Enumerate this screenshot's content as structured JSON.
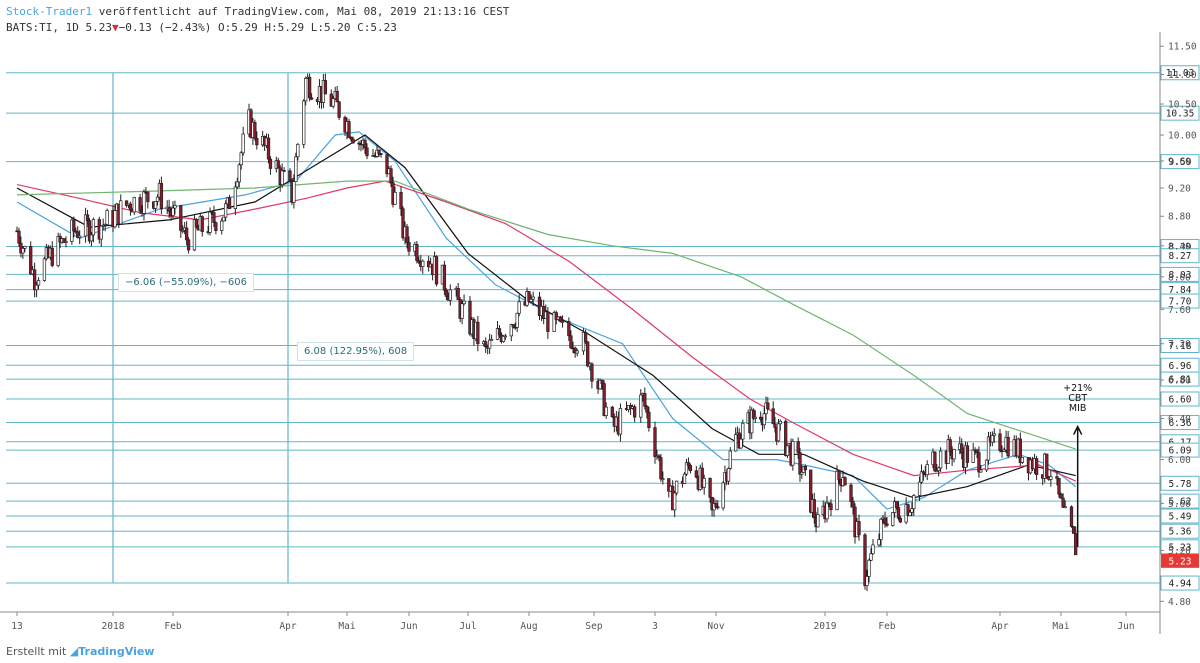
{
  "header": {
    "author": "Stock-Trader1",
    "published": "veröffentlicht auf TradingView.com, Mai 08, 2019 21:13:16 CEST",
    "symbol": "BATS:TI, 1D",
    "last": "5.23",
    "change": "−0.13 (−2.43%)",
    "open": "O:5.29",
    "high": "H:5.29",
    "low": "L:5.20",
    "close": "C:5.23"
  },
  "footer": {
    "prefix": "Erstellt mit",
    "brand": "TradingView"
  },
  "colors": {
    "level_line": "#62b6c8",
    "ma_fast": "#4aa3df",
    "ma_mid": "#111111",
    "ma_slow": "#e0386a",
    "ma_long": "#6fb56f",
    "candle_up": "#ffffff",
    "candle_down": "#8b1a2a",
    "price_label": "#e53935"
  },
  "measurements": [
    {
      "text": "−6.06 (−55.09%), −606"
    },
    {
      "text": "6.08 (122.95%), 608"
    }
  ],
  "annotation": [
    "+21%",
    "CBT",
    "MIB"
  ],
  "chart_data": {
    "type": "candlestick",
    "y_scale": "log",
    "ylim": [
      4.72,
      11.65
    ],
    "y_ticks": [
      "4.80",
      "5.20",
      "5.60",
      "6.00",
      "6.40",
      "6.80",
      "7.20",
      "7.60",
      "8.00",
      "8.40",
      "8.80",
      "9.20",
      "9.60",
      "10.00",
      "10.50",
      "11.00",
      "11.50"
    ],
    "x_ticks": [
      "13",
      "2018",
      "Feb",
      "Apr",
      "Mai",
      "Jun",
      "Jul",
      "Aug",
      "Sep",
      "3",
      "Nov",
      "2019",
      "Feb",
      "Apr",
      "Mai",
      "Jun"
    ],
    "horizontal_levels": [
      "11.03",
      "10.35",
      "9.59",
      "8.39",
      "8.27",
      "8.03",
      "7.84",
      "7.70",
      "7.18",
      "6.96",
      "6.81",
      "6.60",
      "6.36",
      "6.17",
      "6.09",
      "5.78",
      "5.62",
      "5.49",
      "5.36",
      "5.23",
      "4.94"
    ],
    "last_price": "5.23",
    "price_anchors": [
      [
        "2017-11-13",
        8.6
      ],
      [
        "2017-11-22",
        8.0
      ],
      [
        "2017-12-01",
        8.3
      ],
      [
        "2017-12-12",
        8.6
      ],
      [
        "2017-12-28",
        8.7
      ],
      [
        "2018-01-10",
        9.0
      ],
      [
        "2018-01-25",
        9.1
      ],
      [
        "2018-02-08",
        8.5
      ],
      [
        "2018-02-20",
        8.7
      ],
      [
        "2018-03-01",
        8.9
      ],
      [
        "2018-03-12",
        10.2
      ],
      [
        "2018-03-20",
        9.8
      ],
      [
        "2018-04-03",
        9.1
      ],
      [
        "2018-04-10",
        10.9
      ],
      [
        "2018-04-25",
        10.5
      ],
      [
        "2018-05-07",
        9.9
      ],
      [
        "2018-05-21",
        9.5
      ],
      [
        "2018-05-30",
        8.5
      ],
      [
        "2018-06-12",
        8.2
      ],
      [
        "2018-06-25",
        7.7
      ],
      [
        "2018-07-10",
        7.1
      ],
      [
        "2018-07-20",
        7.4
      ],
      [
        "2018-08-01",
        7.7
      ],
      [
        "2018-08-13",
        7.4
      ],
      [
        "2018-08-27",
        7.2
      ],
      [
        "2018-09-10",
        6.3
      ],
      [
        "2018-09-25",
        6.6
      ],
      [
        "2018-10-08",
        5.6
      ],
      [
        "2018-10-20",
        6.0
      ],
      [
        "2018-10-30",
        5.5
      ],
      [
        "2018-11-12",
        6.2
      ],
      [
        "2018-11-26",
        6.5
      ],
      [
        "2018-12-05",
        6.3
      ],
      [
        "2018-12-19",
        5.9
      ],
      [
        "2018-12-28",
        5.4
      ],
      [
        "2019-01-10",
        5.9
      ],
      [
        "2019-01-21",
        5.0
      ],
      [
        "2019-02-01",
        5.5
      ],
      [
        "2019-02-13",
        5.6
      ],
      [
        "2019-02-25",
        6.0
      ],
      [
        "2019-03-08",
        6.1
      ],
      [
        "2019-03-20",
        6.0
      ],
      [
        "2019-04-03",
        6.2
      ],
      [
        "2019-04-15",
        6.0
      ],
      [
        "2019-04-26",
        5.9
      ],
      [
        "2019-05-02",
        5.5
      ],
      [
        "2019-05-08",
        5.23
      ]
    ],
    "moving_averages": [
      {
        "color": "#4aa3df",
        "points": [
          [
            "2017-11-13",
            9.0
          ],
          [
            "2017-12-15",
            8.5
          ],
          [
            "2018-01-25",
            8.9
          ],
          [
            "2018-03-10",
            9.1
          ],
          [
            "2018-04-05",
            9.3
          ],
          [
            "2018-04-25",
            10.0
          ],
          [
            "2018-05-07",
            10.05
          ],
          [
            "2018-05-25",
            9.6
          ],
          [
            "2018-06-20",
            8.5
          ],
          [
            "2018-07-15",
            7.9
          ],
          [
            "2018-08-15",
            7.5
          ],
          [
            "2018-09-15",
            7.2
          ],
          [
            "2018-10-10",
            6.4
          ],
          [
            "2018-11-05",
            6.0
          ],
          [
            "2018-12-05",
            6.0
          ],
          [
            "2018-12-20",
            5.95
          ],
          [
            "2019-01-15",
            5.85
          ],
          [
            "2019-02-01",
            5.55
          ],
          [
            "2019-02-20",
            5.65
          ],
          [
            "2019-03-15",
            5.9
          ],
          [
            "2019-04-10",
            6.05
          ],
          [
            "2019-04-25",
            5.95
          ],
          [
            "2019-05-08",
            5.75
          ]
        ]
      },
      {
        "color": "#111111",
        "points": [
          [
            "2017-11-13",
            9.2
          ],
          [
            "2017-12-20",
            8.65
          ],
          [
            "2018-01-30",
            8.75
          ],
          [
            "2018-03-15",
            9.0
          ],
          [
            "2018-04-10",
            9.45
          ],
          [
            "2018-05-10",
            10.0
          ],
          [
            "2018-05-30",
            9.5
          ],
          [
            "2018-07-01",
            8.3
          ],
          [
            "2018-08-01",
            7.7
          ],
          [
            "2018-08-30",
            7.3
          ],
          [
            "2018-09-30",
            6.85
          ],
          [
            "2018-10-30",
            6.3
          ],
          [
            "2018-11-25",
            6.05
          ],
          [
            "2018-12-20",
            6.05
          ],
          [
            "2019-01-20",
            5.8
          ],
          [
            "2019-02-15",
            5.65
          ],
          [
            "2019-03-15",
            5.75
          ],
          [
            "2019-04-15",
            5.95
          ],
          [
            "2019-05-08",
            5.85
          ]
        ]
      },
      {
        "color": "#e0386a",
        "points": [
          [
            "2017-11-13",
            9.25
          ],
          [
            "2017-12-15",
            9.05
          ],
          [
            "2018-01-15",
            8.85
          ],
          [
            "2018-02-15",
            8.75
          ],
          [
            "2018-03-15",
            8.9
          ],
          [
            "2018-04-10",
            9.05
          ],
          [
            "2018-05-01",
            9.2
          ],
          [
            "2018-05-20",
            9.3
          ],
          [
            "2018-06-20",
            9.0
          ],
          [
            "2018-07-20",
            8.7
          ],
          [
            "2018-08-20",
            8.2
          ],
          [
            "2018-09-20",
            7.6
          ],
          [
            "2018-10-20",
            7.05
          ],
          [
            "2018-11-20",
            6.6
          ],
          [
            "2018-12-15",
            6.35
          ],
          [
            "2019-01-15",
            6.05
          ],
          [
            "2019-02-15",
            5.85
          ],
          [
            "2019-03-15",
            5.9
          ],
          [
            "2019-04-20",
            5.95
          ],
          [
            "2019-05-08",
            5.8
          ]
        ]
      },
      {
        "color": "#6fb56f",
        "points": [
          [
            "2017-11-13",
            9.1
          ],
          [
            "2018-01-15",
            9.15
          ],
          [
            "2018-03-15",
            9.2
          ],
          [
            "2018-05-01",
            9.3
          ],
          [
            "2018-05-25",
            9.3
          ],
          [
            "2018-07-01",
            8.9
          ],
          [
            "2018-08-10",
            8.55
          ],
          [
            "2018-09-10",
            8.4
          ],
          [
            "2018-10-10",
            8.3
          ],
          [
            "2018-11-15",
            8.0
          ],
          [
            "2018-12-15",
            7.65
          ],
          [
            "2019-01-15",
            7.3
          ],
          [
            "2019-02-15",
            6.85
          ],
          [
            "2019-03-15",
            6.45
          ],
          [
            "2019-04-15",
            6.25
          ],
          [
            "2019-05-08",
            6.1
          ]
        ]
      }
    ],
    "measure_lines": [
      "2018-01-01",
      "2018-04-01"
    ]
  }
}
